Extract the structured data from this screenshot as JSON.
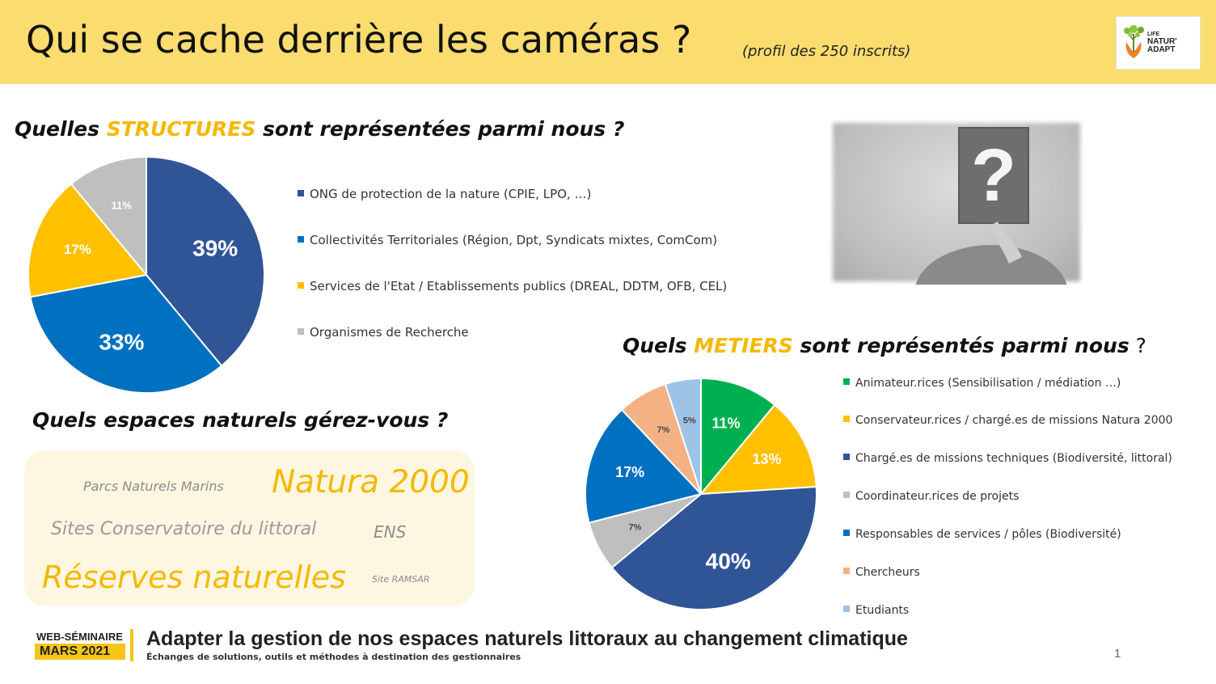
{
  "header": {
    "title": "Qui se cache derrière les caméras ?",
    "subtitle": "(profil des 250 inscrits)",
    "logo": {
      "line1": "LIFE",
      "line2": "NATUR'",
      "line3": "ADAPT"
    }
  },
  "structures_heading": {
    "pre": "Quelles ",
    "accent": "STRUCTURES",
    "post": " sont représentées parmi nous ?"
  },
  "metiers_heading": {
    "pre": "Quels ",
    "accent": "METIERS",
    "post": " sont représentés parmi nous",
    "end": " ?"
  },
  "espaces_heading": "Quels espaces naturels gérez-vous ?",
  "photo": {
    "glyph": "?"
  },
  "word_cloud": [
    {
      "text": "Parcs Naturels Marins",
      "color": "#8c8c8c"
    },
    {
      "text": "Natura 2000",
      "color": "#f5b800"
    },
    {
      "text": "Sites Conservatoire du littoral",
      "color": "#9a9a9a"
    },
    {
      "text": "ENS",
      "color": "#8c8c8c"
    },
    {
      "text": "Réserves naturelles",
      "color": "#f5b800"
    },
    {
      "text": "Site RAMSAR",
      "color": "#8c8c8c"
    }
  ],
  "chart_data": [
    {
      "type": "pie",
      "title": "Quelles STRUCTURES sont représentées parmi nous ?",
      "categories": [
        "ONG de protection de la nature (CPIE, LPO, …)",
        "Collectivités Territoriales (Région, Dpt, Syndicats mixtes, ComCom)",
        "Services de l'Etat / Etablissements publics (DREAL, DDTM, OFB, CEL)",
        "Organismes de Recherche"
      ],
      "values": [
        39,
        33,
        17,
        11
      ],
      "labels": [
        "39%",
        "33%",
        "17%",
        "11%"
      ],
      "colors": [
        "#2f5597",
        "#0070c0",
        "#ffc000",
        "#bfbfbf"
      ],
      "legend": "right"
    },
    {
      "type": "pie",
      "title": "Quels METIERS sont représentés parmi nous ?",
      "categories": [
        "Animateur.rices (Sensibilisation / médiation …)",
        "Conservateur.rices / chargé.es de missions Natura 2000",
        "Chargé.es de missions techniques (Biodiversité, littoral)",
        "Coordinateur.rices de projets",
        "Responsables de services / pôles (Biodiversité)",
        "Chercheurs",
        "Etudiants"
      ],
      "values": [
        11,
        13,
        40,
        7,
        17,
        7,
        5
      ],
      "labels": [
        "11%",
        "13%",
        "40%",
        "7%",
        "17%",
        "7%",
        "5%"
      ],
      "colors": [
        "#00b050",
        "#ffc000",
        "#2f5597",
        "#bfbfbf",
        "#0070c0",
        "#f4b183",
        "#9dc3e6"
      ],
      "legend": "right"
    }
  ],
  "footer": {
    "badge_top": "WEB-SÉMINAIRE",
    "badge_bottom": "MARS 2021",
    "title": "Adapter la gestion de nos espaces naturels littoraux au changement climatique",
    "subtitle": "Échanges de solutions, outils et méthodes à destination des gestionnaires",
    "page": "1"
  }
}
